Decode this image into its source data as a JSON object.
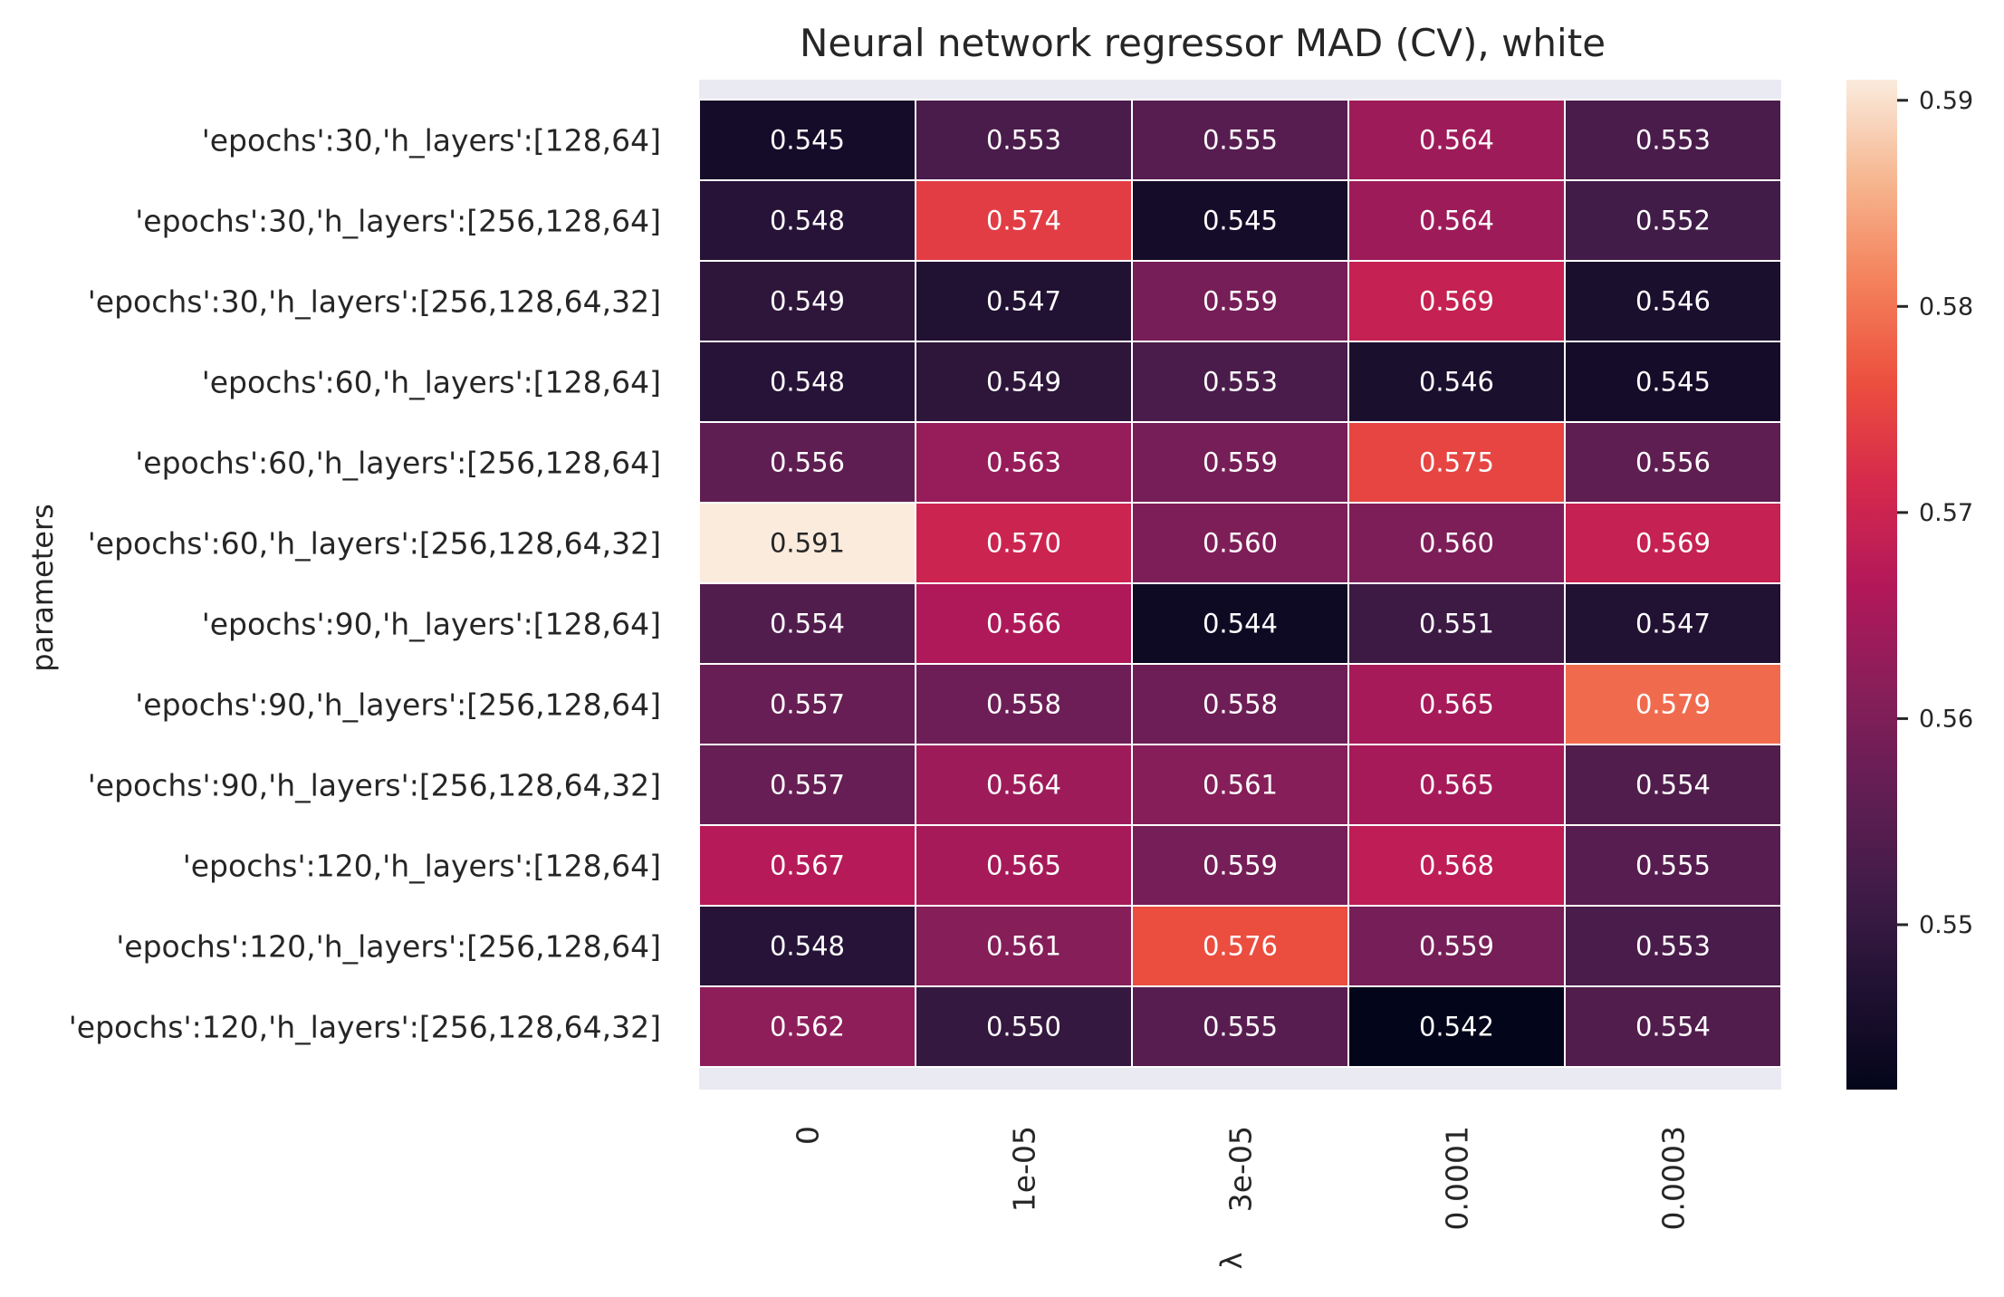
{
  "chart_data": {
    "type": "heatmap",
    "title": "Neural network regressor MAD (CV), white",
    "xlabel": "λ",
    "ylabel": "parameters",
    "x_categories": [
      "0",
      "1e-05",
      "3e-05",
      "0.0001",
      "0.0003"
    ],
    "y_categories": [
      "'epochs':30,'h_layers':[128,64]",
      "'epochs':30,'h_layers':[256,128,64]",
      "'epochs':30,'h_layers':[256,128,64,32]",
      "'epochs':60,'h_layers':[128,64]",
      "'epochs':60,'h_layers':[256,128,64]",
      "'epochs':60,'h_layers':[256,128,64,32]",
      "'epochs':90,'h_layers':[128,64]",
      "'epochs':90,'h_layers':[256,128,64]",
      "'epochs':90,'h_layers':[256,128,64,32]",
      "'epochs':120,'h_layers':[128,64]",
      "'epochs':120,'h_layers':[256,128,64]",
      "'epochs':120,'h_layers':[256,128,64,32]"
    ],
    "values": [
      [
        0.545,
        0.553,
        0.555,
        0.564,
        0.553
      ],
      [
        0.548,
        0.574,
        0.545,
        0.564,
        0.552
      ],
      [
        0.549,
        0.547,
        0.559,
        0.569,
        0.546
      ],
      [
        0.548,
        0.549,
        0.553,
        0.546,
        0.545
      ],
      [
        0.556,
        0.563,
        0.559,
        0.575,
        0.556
      ],
      [
        0.591,
        0.57,
        0.56,
        0.56,
        0.569
      ],
      [
        0.554,
        0.566,
        0.544,
        0.551,
        0.547
      ],
      [
        0.557,
        0.558,
        0.558,
        0.565,
        0.579
      ],
      [
        0.557,
        0.564,
        0.561,
        0.565,
        0.554
      ],
      [
        0.567,
        0.565,
        0.559,
        0.568,
        0.555
      ],
      [
        0.548,
        0.561,
        0.576,
        0.559,
        0.553
      ],
      [
        0.562,
        0.55,
        0.555,
        0.542,
        0.554
      ]
    ],
    "value_format": "3 decimals",
    "colormap": "rocket",
    "colorbar": {
      "range": [
        0.542,
        0.591
      ],
      "ticks": [
        0.55,
        0.56,
        0.57,
        0.58,
        0.59
      ],
      "tick_labels": [
        "0.55",
        "0.56",
        "0.57",
        "0.58",
        "0.59"
      ]
    },
    "gridlines_between_cells": "white",
    "background_band_color": "#eaeaf2"
  }
}
